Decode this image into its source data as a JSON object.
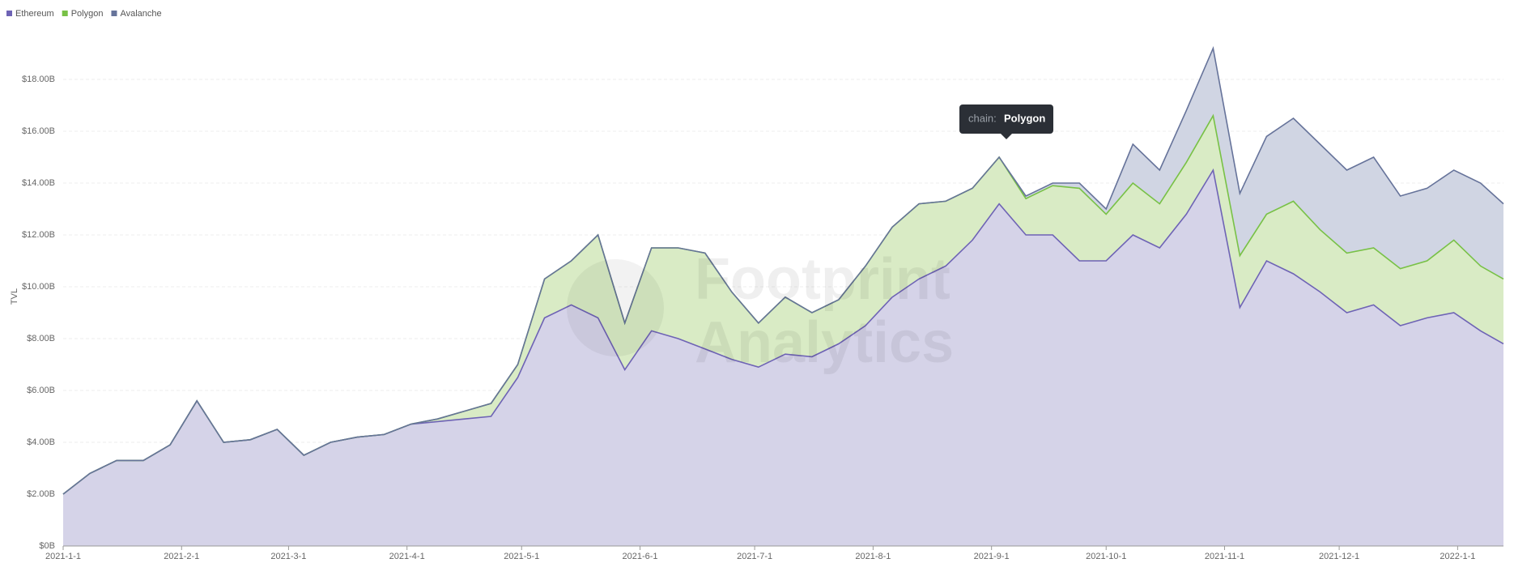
{
  "chart_data": {
    "type": "stacked_area",
    "y_label": "TVL",
    "watermark": [
      "Footprint",
      "Analytics"
    ],
    "tooltip": {
      "label": "chain:",
      "value": "Polygon"
    },
    "legend": "top-left",
    "grid": true,
    "x": [
      "2021-1-1",
      "2021-1-8",
      "2021-1-15",
      "2021-1-22",
      "2021-1-29",
      "2021-2-5",
      "2021-2-12",
      "2021-2-19",
      "2021-2-26",
      "2021-3-5",
      "2021-3-12",
      "2021-3-19",
      "2021-3-26",
      "2021-4-2",
      "2021-4-9",
      "2021-4-16",
      "2021-4-23",
      "2021-4-30",
      "2021-5-7",
      "2021-5-14",
      "2021-5-21",
      "2021-5-28",
      "2021-6-4",
      "2021-6-11",
      "2021-6-18",
      "2021-6-25",
      "2021-7-2",
      "2021-7-9",
      "2021-7-16",
      "2021-7-23",
      "2021-7-30",
      "2021-8-6",
      "2021-8-13",
      "2021-8-20",
      "2021-8-27",
      "2021-9-3",
      "2021-9-10",
      "2021-9-17",
      "2021-9-24",
      "2021-10-1",
      "2021-10-8",
      "2021-10-15",
      "2021-10-22",
      "2021-10-29",
      "2021-11-5",
      "2021-11-12",
      "2021-11-19",
      "2021-11-26",
      "2021-12-3",
      "2021-12-10",
      "2021-12-17",
      "2021-12-24",
      "2021-12-31",
      "2022-1-7",
      "2022-1-13"
    ],
    "xlim": [
      "2021-1-1",
      "2022-1-13"
    ],
    "xticks": [
      "2021-1-1",
      "2021-2-1",
      "2021-3-1",
      "2021-4-1",
      "2021-5-1",
      "2021-6-1",
      "2021-7-1",
      "2021-8-1",
      "2021-9-1",
      "2021-10-1",
      "2021-11-1",
      "2021-12-1",
      "2022-1-1"
    ],
    "ylim": [
      0,
      20
    ],
    "yticks": [
      {
        "value": 0,
        "label": "$0B"
      },
      {
        "value": 2,
        "label": "$2.00B"
      },
      {
        "value": 4,
        "label": "$4.00B"
      },
      {
        "value": 6,
        "label": "$6.00B"
      },
      {
        "value": 8,
        "label": "$8.00B"
      },
      {
        "value": 10,
        "label": "$10.00B"
      },
      {
        "value": 12,
        "label": "$12.00B"
      },
      {
        "value": 14,
        "label": "$14.00B"
      },
      {
        "value": 16,
        "label": "$16.00B"
      },
      {
        "value": 18,
        "label": "$18.00B"
      }
    ],
    "series": [
      {
        "name": "Ethereum",
        "color": "#6e63b5",
        "fill": "#d5d3e8",
        "values": [
          2.0,
          2.8,
          3.3,
          3.3,
          3.9,
          5.6,
          4.0,
          4.1,
          4.5,
          3.5,
          4.0,
          4.2,
          4.3,
          4.7,
          4.8,
          4.9,
          5.0,
          6.5,
          8.8,
          9.3,
          8.8,
          6.8,
          8.3,
          8.0,
          7.6,
          7.2,
          6.9,
          7.4,
          7.3,
          7.8,
          8.5,
          9.6,
          10.3,
          10.8,
          11.8,
          13.2,
          12.0,
          12.0,
          11.0,
          11.0,
          12.0,
          11.5,
          12.8,
          14.5,
          9.2,
          11.0,
          10.5,
          9.8,
          9.0,
          9.3,
          8.5,
          8.8,
          9.0,
          8.3,
          7.8
        ]
      },
      {
        "name": "Polygon",
        "color": "#78c146",
        "fill": "#d9ebc5",
        "values": [
          0,
          0,
          0,
          0,
          0,
          0,
          0,
          0,
          0,
          0,
          0,
          0,
          0,
          0,
          0.1,
          0.3,
          0.5,
          0.5,
          1.5,
          1.7,
          3.2,
          1.8,
          3.2,
          3.5,
          3.7,
          2.6,
          1.7,
          2.2,
          1.7,
          1.7,
          2.3,
          2.7,
          2.9,
          2.5,
          2.0,
          1.8,
          1.4,
          1.9,
          2.8,
          1.8,
          2.0,
          1.7,
          2.0,
          2.1,
          2.0,
          1.8,
          2.8,
          2.4,
          2.3,
          2.2,
          2.2,
          2.2,
          2.8,
          2.5,
          2.5
        ]
      },
      {
        "name": "Avalanche",
        "color": "#66739a",
        "fill": "#d0d5e3",
        "values": [
          0,
          0,
          0,
          0,
          0,
          0,
          0,
          0,
          0,
          0,
          0,
          0,
          0,
          0,
          0,
          0,
          0,
          0,
          0,
          0,
          0,
          0,
          0,
          0,
          0,
          0,
          0,
          0,
          0,
          0,
          0,
          0,
          0,
          0,
          0,
          0,
          0.1,
          0.1,
          0.2,
          0.2,
          1.5,
          1.3,
          2.0,
          2.6,
          2.4,
          3.0,
          3.2,
          3.3,
          3.2,
          3.5,
          2.8,
          2.8,
          2.7,
          3.2,
          2.9
        ]
      }
    ]
  }
}
